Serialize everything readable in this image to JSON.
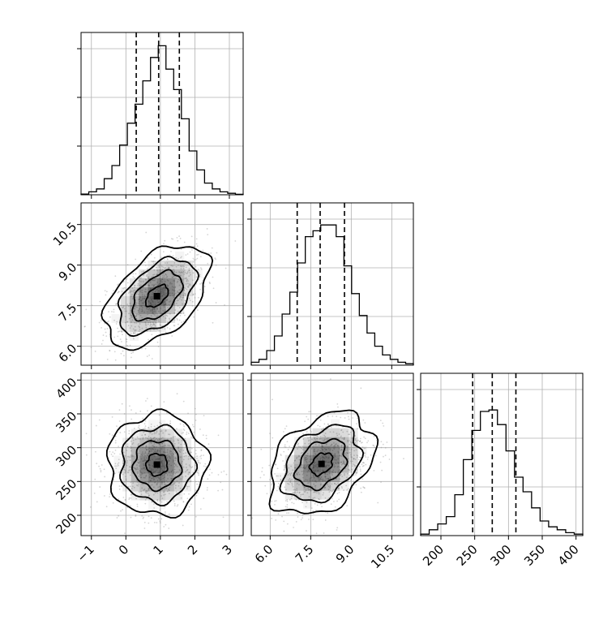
{
  "chart_data": {
    "type": "corner",
    "parameters": [
      {
        "range": [
          -1.3,
          3.4
        ],
        "ticks": [
          -1,
          0,
          1,
          2,
          3
        ],
        "tick_labels": [
          "−1",
          "0",
          "1",
          "2",
          "3"
        ],
        "quantiles": [
          0.3,
          0.95,
          1.55
        ],
        "histogram": [
          0.005,
          0.02,
          0.04,
          0.11,
          0.2,
          0.34,
          0.49,
          0.62,
          0.78,
          0.94,
          1.02,
          0.86,
          0.72,
          0.52,
          0.3,
          0.17,
          0.08,
          0.04,
          0.02,
          0.01,
          0.003
        ]
      },
      {
        "range": [
          5.3,
          11.3
        ],
        "ticks": [
          6,
          7.5,
          9,
          10.5
        ],
        "tick_labels": [
          "6.0",
          "7.5",
          "9.0",
          "10.5"
        ],
        "quantiles": [
          7.0,
          7.85,
          8.75
        ],
        "histogram": [
          0.02,
          0.04,
          0.1,
          0.2,
          0.35,
          0.5,
          0.7,
          0.88,
          0.92,
          0.96,
          0.96,
          0.88,
          0.68,
          0.49,
          0.34,
          0.22,
          0.13,
          0.07,
          0.04,
          0.02,
          0.01
        ]
      },
      {
        "range": [
          170,
          410
        ],
        "ticks": [
          200,
          250,
          300,
          350,
          400
        ],
        "tick_labels": [
          "200",
          "250",
          "300",
          "350",
          "400"
        ],
        "quantiles": [
          247,
          276,
          311
        ],
        "histogram": [
          0.01,
          0.04,
          0.08,
          0.13,
          0.28,
          0.52,
          0.72,
          0.85,
          0.86,
          0.76,
          0.58,
          0.4,
          0.3,
          0.19,
          0.1,
          0.06,
          0.04,
          0.02,
          0.01
        ]
      }
    ],
    "pairs": [
      {
        "row": 1,
        "col": 0,
        "mean": [
          0.9,
          7.85
        ],
        "std": [
          0.72,
          0.9
        ],
        "corr": 0.5,
        "contour_scales": [
          2.1,
          1.55,
          1.0,
          0.45
        ],
        "wiggle": 0.06
      },
      {
        "row": 2,
        "col": 0,
        "mean": [
          0.9,
          275
        ],
        "std": [
          0.68,
          36
        ],
        "corr": 0.0,
        "contour_scales": [
          2.1,
          1.55,
          1.0,
          0.45
        ],
        "wiggle": 0.07
      },
      {
        "row": 2,
        "col": 1,
        "mean": [
          7.9,
          276
        ],
        "std": [
          0.92,
          36
        ],
        "corr": 0.35,
        "contour_scales": [
          2.1,
          1.55,
          1.0,
          0.45
        ],
        "wiggle": 0.08
      }
    ],
    "grid": true,
    "colors": {
      "line": "#000000",
      "grid": "#b0b0b0",
      "points": "#888888",
      "shade": "#000000"
    }
  }
}
